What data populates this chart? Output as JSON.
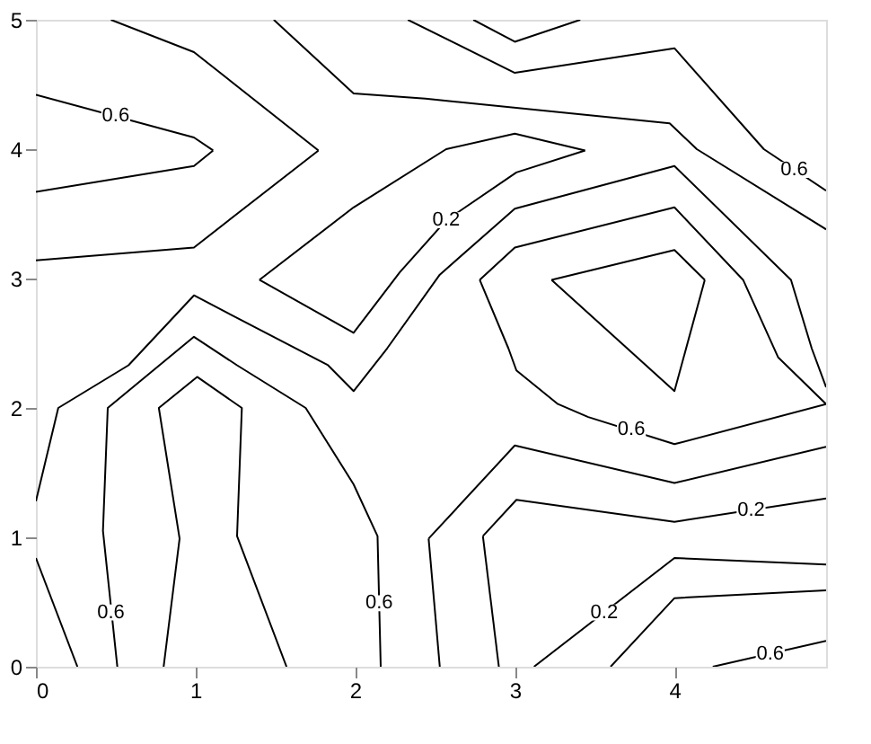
{
  "chart_data": {
    "type": "line",
    "xlim": [
      0,
      4.95
    ],
    "ylim": [
      0,
      5
    ],
    "xticks": [
      0,
      1,
      2,
      3,
      4
    ],
    "yticks": [
      0,
      1,
      2,
      3,
      4,
      5
    ],
    "grid": false,
    "marker": "none",
    "line_style": "solid",
    "series": [
      {
        "color": "#000000",
        "x": [
          0,
          0.99,
          1.11
        ],
        "values": [
          4.42,
          4.09,
          3.99
        ]
      },
      {
        "color": "#000000",
        "x": [
          1.11,
          0.99,
          0
        ],
        "values": [
          3.99,
          3.87,
          3.67
        ]
      },
      {
        "color": "#000000",
        "x": [
          0.47,
          0.99,
          1.77
        ],
        "values": [
          5,
          4.75,
          3.99
        ]
      },
      {
        "color": "#000000",
        "x": [
          1.77,
          0.99,
          0
        ],
        "values": [
          3.99,
          3.24,
          3.14
        ]
      },
      {
        "color": "#000000",
        "x": [
          1.49,
          1.99,
          2.44,
          3.97,
          4.14,
          4.95
        ],
        "values": [
          5,
          4.43,
          4.39,
          4.2,
          4.0,
          3.38
        ]
      },
      {
        "color": "#000000",
        "x": [
          2.33,
          3.0,
          4.0,
          4.56,
          4.95
        ],
        "values": [
          5,
          4.59,
          4.78,
          4.0,
          3.68
        ]
      },
      {
        "color": "#000000",
        "x": [
          2.74,
          3.0,
          3.41
        ],
        "values": [
          5,
          4.83,
          5
        ]
      },
      {
        "color": "#000000",
        "x": [
          1.4,
          1.99,
          2.57,
          3.0,
          3.44
        ],
        "values": [
          2.99,
          3.55,
          4.0,
          4.12,
          3.99
        ]
      },
      {
        "color": "#000000",
        "x": [
          3.44,
          3.01,
          2.57,
          2.28,
          1.99,
          1.4
        ],
        "values": [
          3.99,
          3.82,
          3.45,
          3.05,
          2.58,
          2.99
        ]
      },
      {
        "color": "#000000",
        "x": [
          0,
          0.14,
          0.58,
          0.99,
          1.83,
          1.99,
          2.2,
          2.53,
          3.0,
          4.0,
          4.73,
          4.86,
          4.95
        ],
        "values": [
          1.28,
          2.0,
          2.33,
          2.87,
          2.33,
          2.13,
          2.46,
          3.03,
          3.54,
          3.87,
          2.99,
          2.46,
          2.16
        ]
      },
      {
        "color": "#000000",
        "x": [
          0.51,
          0.42,
          0.45,
          0.99,
          1.26,
          1.69,
          1.99,
          2.14,
          2.16
        ],
        "values": [
          0,
          1.05,
          2.0,
          2.55,
          2.33,
          2.0,
          1.41,
          1.01,
          0
        ]
      },
      {
        "color": "#000000",
        "x": [
          0.8,
          0.9,
          0.77,
          1.01,
          1.29,
          1.26,
          1.57
        ],
        "values": [
          0,
          0.99,
          2.0,
          2.24,
          2.0,
          1.01,
          0
        ]
      },
      {
        "color": "#000000",
        "x": [
          0,
          0.26
        ],
        "values": [
          0.84,
          0
        ]
      },
      {
        "color": "#000000",
        "x": [
          4.95,
          4.0,
          3.46,
          3.27,
          3.01,
          2.96,
          2.78
        ],
        "values": [
          2.03,
          1.72,
          1.93,
          2.03,
          2.29,
          2.46,
          2.99
        ]
      },
      {
        "color": "#000000",
        "x": [
          2.78,
          3.0,
          4.0,
          4.43,
          4.65,
          4.95
        ],
        "values": [
          2.99,
          3.24,
          3.55,
          2.99,
          2.39,
          2.03
        ]
      },
      {
        "color": "#000000",
        "x": [
          3.23,
          4.0,
          4.19
        ],
        "values": [
          2.99,
          3.22,
          2.99
        ]
      },
      {
        "color": "#000000",
        "x": [
          4.19,
          4.0,
          3.23
        ],
        "values": [
          2.99,
          2.13,
          2.99
        ]
      },
      {
        "color": "#000000",
        "x": [
          2.53,
          2.46
        ],
        "values": [
          0,
          0.99
        ]
      },
      {
        "color": "#000000",
        "x": [
          2.46,
          3.0,
          4.0,
          4.95
        ],
        "values": [
          0.99,
          1.71,
          1.42,
          1.7
        ]
      },
      {
        "color": "#000000",
        "x": [
          2.9,
          2.8
        ],
        "values": [
          0,
          1.01
        ]
      },
      {
        "color": "#000000",
        "x": [
          2.8,
          3.01,
          4.0,
          4.95
        ],
        "values": [
          1.01,
          1.29,
          1.12,
          1.3
        ]
      },
      {
        "color": "#000000",
        "x": [
          3.12,
          4.0,
          4.95
        ],
        "values": [
          0,
          0.84,
          0.79
        ]
      },
      {
        "color": "#000000",
        "x": [
          3.6,
          4.0,
          4.95
        ],
        "values": [
          0,
          0.53,
          0.59
        ]
      },
      {
        "color": "#000000",
        "x": [
          4.24,
          4.95
        ],
        "values": [
          0,
          0.2
        ]
      }
    ],
    "annotations": [
      {
        "text": "0.6",
        "x": 0.5,
        "y": 4.26
      },
      {
        "text": "0.2",
        "x": 2.57,
        "y": 3.45
      },
      {
        "text": "0.6",
        "x": 4.75,
        "y": 3.84
      },
      {
        "text": "0.6",
        "x": 0.47,
        "y": 0.42
      },
      {
        "text": "0.6",
        "x": 2.15,
        "y": 0.49
      },
      {
        "text": "0.6",
        "x": 3.73,
        "y": 1.83
      },
      {
        "text": "0.2",
        "x": 4.48,
        "y": 1.21
      },
      {
        "text": "0.2",
        "x": 3.56,
        "y": 0.42
      },
      {
        "text": "0.6",
        "x": 4.6,
        "y": 0.1
      }
    ]
  }
}
